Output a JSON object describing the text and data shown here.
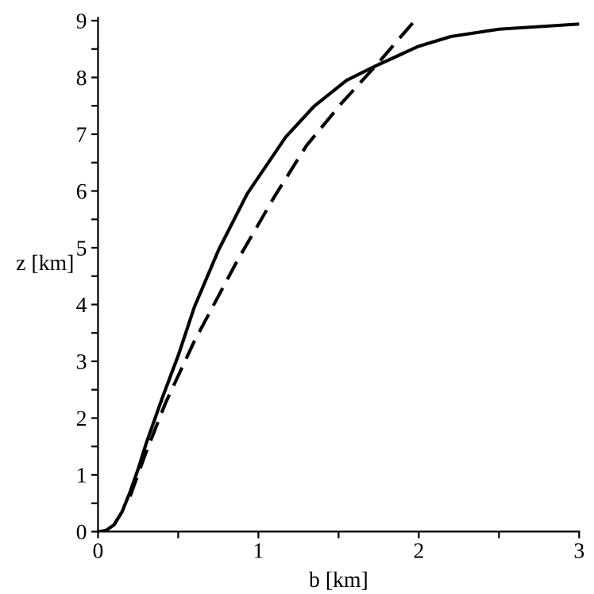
{
  "chart_data": {
    "type": "line",
    "xlabel": "b [km]",
    "ylabel": "z [km]",
    "xlim": [
      0,
      3
    ],
    "ylim": [
      0,
      9.05
    ],
    "xticks": [
      0,
      {
        "value": 0.5,
        "label": null
      },
      1,
      {
        "value": 1.5,
        "label": null
      },
      2,
      {
        "value": 2.5,
        "label": null
      },
      3
    ],
    "yticks": [
      0,
      {
        "value": 0.5,
        "label": null
      },
      1,
      {
        "value": 1.5,
        "label": null
      },
      2,
      {
        "value": 2.5,
        "label": null
      },
      3,
      {
        "value": 3.5,
        "label": null
      },
      4,
      {
        "value": 4.5,
        "label": null
      },
      5,
      {
        "value": 5.5,
        "label": null
      },
      6,
      {
        "value": 6.5,
        "label": null
      },
      7,
      {
        "value": 7.5,
        "label": null
      },
      8,
      {
        "value": 8.5,
        "label": null
      },
      9
    ],
    "grid": false,
    "legend": false,
    "series": [
      {
        "color": "#000000",
        "line_style": "solid",
        "x": [
          0,
          0.05,
          0.1,
          0.15,
          0.2,
          0.25,
          0.3,
          0.4,
          0.5,
          0.6,
          0.75,
          0.93,
          1.17,
          1.35,
          1.55,
          1.73,
          2.0,
          2.2,
          2.5,
          3.0
        ],
        "values": [
          0,
          0.02,
          0.12,
          0.35,
          0.7,
          1.1,
          1.55,
          2.35,
          3.1,
          3.95,
          4.95,
          5.95,
          6.95,
          7.5,
          7.95,
          8.2,
          8.55,
          8.72,
          8.85,
          8.94
        ]
      },
      {
        "color": "#000000",
        "line_style": "dashed",
        "x": [
          0.2,
          0.3,
          0.42,
          0.6,
          0.87,
          1.1,
          1.3,
          1.52,
          1.73,
          1.99
        ],
        "values": [
          0.62,
          1.4,
          2.26,
          3.35,
          4.78,
          5.9,
          6.8,
          7.55,
          8.2,
          9.05
        ]
      }
    ]
  }
}
